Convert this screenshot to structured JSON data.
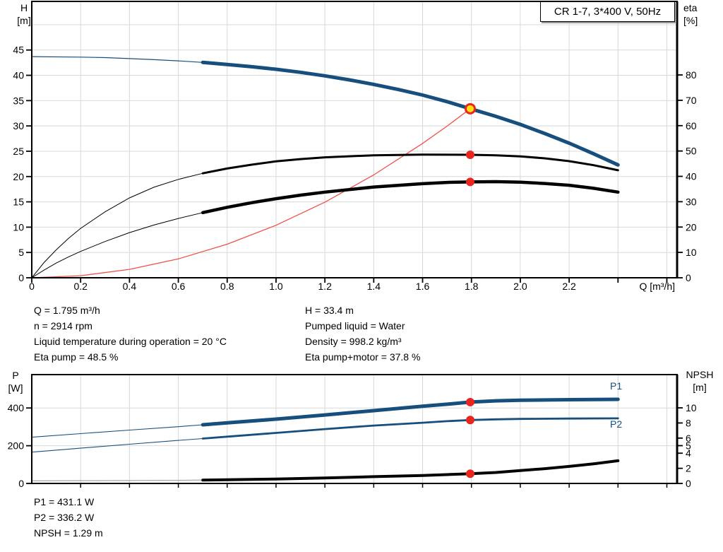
{
  "title_box": "CR 1-7, 3*400 V, 50Hz",
  "labels": {
    "h_axis": "H",
    "h_unit": "[m]",
    "eta_axis": "eta",
    "eta_unit": "[%]",
    "q_axis": "Q [m³/h]",
    "p_axis": "P",
    "p_unit": "[W]",
    "npsh_axis": "NPSH",
    "npsh_unit": "[m]",
    "p1_curve": "P1",
    "p2_curve": "P2"
  },
  "info_top": {
    "left": [
      "Q = 1.795 m³/h",
      "n = 2914 rpm",
      "Liquid temperature during operation = 20 °C",
      "Eta pump = 48.5 %"
    ],
    "right": [
      "H = 33.4 m",
      "Pumped liquid = Water",
      "Density = 998.2 kg/m³",
      "Eta pump+motor = 37.8 %"
    ]
  },
  "info_bottom": [
    "P1 = 431.1 W",
    "P2 = 336.2 W",
    "NPSH = 1.29 m"
  ],
  "colors": {
    "curve_blue": "#164f7d",
    "curve_black": "#000000",
    "system_red": "#f0514a",
    "dot_red": "#e8251f",
    "duty_yellow": "#ffe10a",
    "grid": "#d8d8d8",
    "axis": "#000000",
    "npsh_thin": "#999999"
  },
  "chart_data": [
    {
      "type": "line",
      "name": "qh-eta-chart",
      "x_axis": {
        "label": "Q [m³/h]",
        "min": 0,
        "max": 2.642,
        "grid_step": 0.2,
        "ticks": [
          {
            "v": 0,
            "l": "0"
          },
          {
            "v": 0.2,
            "l": "0.2"
          },
          {
            "v": 0.4,
            "l": "0.4"
          },
          {
            "v": 0.6,
            "l": "0.6"
          },
          {
            "v": 0.8,
            "l": "0.8"
          },
          {
            "v": 1.0,
            "l": "1.0"
          },
          {
            "v": 1.2,
            "l": "1.2"
          },
          {
            "v": 1.4,
            "l": "1.4"
          },
          {
            "v": 1.6,
            "l": "1.6"
          },
          {
            "v": 1.8,
            "l": "1.8"
          },
          {
            "v": 2.0,
            "l": "2.0"
          },
          {
            "v": 2.2,
            "l": "2.2"
          },
          {
            "v": 2.4,
            "l": ""
          },
          {
            "v": 2.6,
            "l": ""
          }
        ]
      },
      "y_left": {
        "name": "H",
        "unit": "[m]",
        "min": 0,
        "max": 54.6,
        "ticks": [
          45,
          40,
          35,
          30,
          25,
          20,
          15,
          10,
          5,
          0
        ],
        "grid": [
          5,
          10,
          15,
          20,
          25,
          30,
          35,
          40,
          45,
          50
        ]
      },
      "y_right": {
        "name": "eta",
        "unit": "[%]",
        "min": 0,
        "max": 109,
        "ticks": [
          80,
          70,
          60,
          50,
          40,
          30,
          20,
          10,
          0
        ]
      },
      "series": [
        {
          "id": "system-curve",
          "axis": "left",
          "color": "system_red",
          "width": 1.3,
          "points": [
            [
              0,
              0
            ],
            [
              0.2,
              0.41
            ],
            [
              0.4,
              1.66
            ],
            [
              0.6,
              3.73
            ],
            [
              0.8,
              6.63
            ],
            [
              1.0,
              10.37
            ],
            [
              1.2,
              14.93
            ],
            [
              1.4,
              20.32
            ],
            [
              1.6,
              26.54
            ],
            [
              1.7,
              29.96
            ],
            [
              1.795,
              33.4
            ]
          ]
        },
        {
          "id": "eta-pump-curve",
          "axis": "right",
          "color": "curve_black",
          "width": 1,
          "thick_width": 3,
          "thick_from": 0.7,
          "points": [
            [
              0,
              0
            ],
            [
              0.05,
              6
            ],
            [
              0.1,
              11
            ],
            [
              0.15,
              15.5
            ],
            [
              0.2,
              19.5
            ],
            [
              0.3,
              26
            ],
            [
              0.4,
              31.5
            ],
            [
              0.5,
              35.7
            ],
            [
              0.6,
              38.8
            ],
            [
              0.7,
              41.2
            ],
            [
              0.8,
              43.1
            ],
            [
              0.9,
              44.6
            ],
            [
              1.0,
              45.9
            ],
            [
              1.1,
              46.8
            ],
            [
              1.2,
              47.5
            ],
            [
              1.4,
              48.3
            ],
            [
              1.6,
              48.6
            ],
            [
              1.795,
              48.5
            ],
            [
              1.9,
              48.3
            ],
            [
              2.0,
              47.9
            ],
            [
              2.1,
              47.1
            ],
            [
              2.2,
              46.0
            ],
            [
              2.3,
              44.4
            ],
            [
              2.4,
              42.4
            ]
          ]
        },
        {
          "id": "eta-pump-motor-curve",
          "axis": "right",
          "color": "curve_black",
          "width": 1,
          "thick_width": 4.5,
          "thick_from": 0.7,
          "points": [
            [
              0,
              0
            ],
            [
              0.05,
              3
            ],
            [
              0.1,
              5.8
            ],
            [
              0.15,
              8.2
            ],
            [
              0.2,
              10.4
            ],
            [
              0.3,
              14.3
            ],
            [
              0.4,
              17.8
            ],
            [
              0.5,
              20.8
            ],
            [
              0.6,
              23.4
            ],
            [
              0.7,
              25.7
            ],
            [
              0.8,
              27.8
            ],
            [
              0.9,
              29.6
            ],
            [
              1.0,
              31.2
            ],
            [
              1.1,
              32.6
            ],
            [
              1.2,
              33.8
            ],
            [
              1.4,
              35.8
            ],
            [
              1.6,
              37.1
            ],
            [
              1.7,
              37.6
            ],
            [
              1.795,
              37.8
            ],
            [
              1.9,
              37.9
            ],
            [
              2.0,
              37.7
            ],
            [
              2.1,
              37.2
            ],
            [
              2.2,
              36.5
            ],
            [
              2.3,
              35.3
            ],
            [
              2.4,
              33.8
            ]
          ]
        },
        {
          "id": "qh-curve",
          "axis": "left",
          "color": "curve_blue",
          "width": 1.2,
          "thick_width": 5,
          "thick_from": 0.7,
          "points": [
            [
              0,
              43.7
            ],
            [
              0.2,
              43.6
            ],
            [
              0.3,
              43.5
            ],
            [
              0.4,
              43.3
            ],
            [
              0.5,
              43.1
            ],
            [
              0.6,
              42.85
            ],
            [
              0.7,
              42.55
            ],
            [
              0.8,
              42.15
            ],
            [
              0.9,
              41.7
            ],
            [
              1.0,
              41.2
            ],
            [
              1.1,
              40.6
            ],
            [
              1.2,
              39.9
            ],
            [
              1.3,
              39.1
            ],
            [
              1.4,
              38.2
            ],
            [
              1.5,
              37.2
            ],
            [
              1.6,
              36.1
            ],
            [
              1.7,
              34.8
            ],
            [
              1.795,
              33.4
            ],
            [
              1.9,
              31.9
            ],
            [
              2.0,
              30.3
            ],
            [
              2.1,
              28.5
            ],
            [
              2.2,
              26.6
            ],
            [
              2.3,
              24.5
            ],
            [
              2.4,
              22.3
            ]
          ]
        }
      ],
      "markers": [
        {
          "style": "duty",
          "axis": "left",
          "x": 1.795,
          "y": 33.4
        },
        {
          "style": "dot",
          "axis": "right",
          "x": 1.795,
          "y": 48.5
        },
        {
          "style": "dot",
          "axis": "right",
          "x": 1.795,
          "y": 37.8
        }
      ]
    },
    {
      "type": "line",
      "name": "power-npsh-chart",
      "x_axis": {
        "label": "",
        "min": 0,
        "max": 2.642,
        "grid_step": 0.2,
        "ticks_at_grid": true,
        "ticks": []
      },
      "y_left": {
        "name": "P",
        "unit": "[W]",
        "min": 0,
        "max": 577,
        "ticks": [
          400,
          200,
          0
        ],
        "grid": [
          200,
          400
        ]
      },
      "y_right": {
        "name": "NPSH",
        "unit": "[m]",
        "min": 0,
        "max": 14.4,
        "ticks": [
          10,
          8,
          6,
          5,
          4,
          2,
          0
        ]
      },
      "series": [
        {
          "id": "p1-curve",
          "axis": "left",
          "color": "curve_blue",
          "width": 1.1,
          "thick_width": 5,
          "thick_from": 0.7,
          "label": "P1",
          "points": [
            [
              0,
              245
            ],
            [
              0.2,
              264
            ],
            [
              0.4,
              283
            ],
            [
              0.6,
              301
            ],
            [
              0.7,
              311
            ],
            [
              0.8,
              321
            ],
            [
              1.0,
              341
            ],
            [
              1.2,
              363
            ],
            [
              1.4,
              386
            ],
            [
              1.6,
              409
            ],
            [
              1.7,
              420
            ],
            [
              1.795,
              431.1
            ],
            [
              1.9,
              438
            ],
            [
              2.0,
              441
            ],
            [
              2.2,
              444
            ],
            [
              2.4,
              446
            ]
          ]
        },
        {
          "id": "p2-curve",
          "axis": "left",
          "color": "curve_blue",
          "width": 1.1,
          "thick_width": 2.8,
          "thick_from": 0.7,
          "label": "P2",
          "points": [
            [
              0,
              166
            ],
            [
              0.2,
              187
            ],
            [
              0.4,
              208
            ],
            [
              0.6,
              228
            ],
            [
              0.7,
              238
            ],
            [
              0.8,
              248
            ],
            [
              1.0,
              268
            ],
            [
              1.2,
              288
            ],
            [
              1.4,
              307
            ],
            [
              1.6,
              322
            ],
            [
              1.7,
              330
            ],
            [
              1.795,
              336.2
            ],
            [
              1.9,
              340
            ],
            [
              2.0,
              342
            ],
            [
              2.2,
              344
            ],
            [
              2.4,
              345
            ]
          ]
        },
        {
          "id": "npsh-curve",
          "axis": "right",
          "color": "curve_black",
          "thin_color": "npsh_thin",
          "width": 1.1,
          "thick_width": 4,
          "thick_from": 0.7,
          "points": [
            [
              0,
              0.35
            ],
            [
              0.2,
              0.36
            ],
            [
              0.4,
              0.38
            ],
            [
              0.6,
              0.42
            ],
            [
              0.7,
              0.45
            ],
            [
              0.8,
              0.5
            ],
            [
              1.0,
              0.58
            ],
            [
              1.2,
              0.72
            ],
            [
              1.4,
              0.9
            ],
            [
              1.6,
              1.05
            ],
            [
              1.795,
              1.29
            ],
            [
              1.9,
              1.45
            ],
            [
              2.0,
              1.7
            ],
            [
              2.1,
              1.95
            ],
            [
              2.2,
              2.25
            ],
            [
              2.3,
              2.6
            ],
            [
              2.4,
              3.0
            ]
          ]
        }
      ],
      "markers": [
        {
          "style": "dot",
          "axis": "left",
          "x": 1.795,
          "y": 431.1
        },
        {
          "style": "dot",
          "axis": "left",
          "x": 1.795,
          "y": 336.2
        },
        {
          "style": "dot",
          "axis": "right",
          "x": 1.795,
          "y": 1.29
        }
      ]
    }
  ]
}
